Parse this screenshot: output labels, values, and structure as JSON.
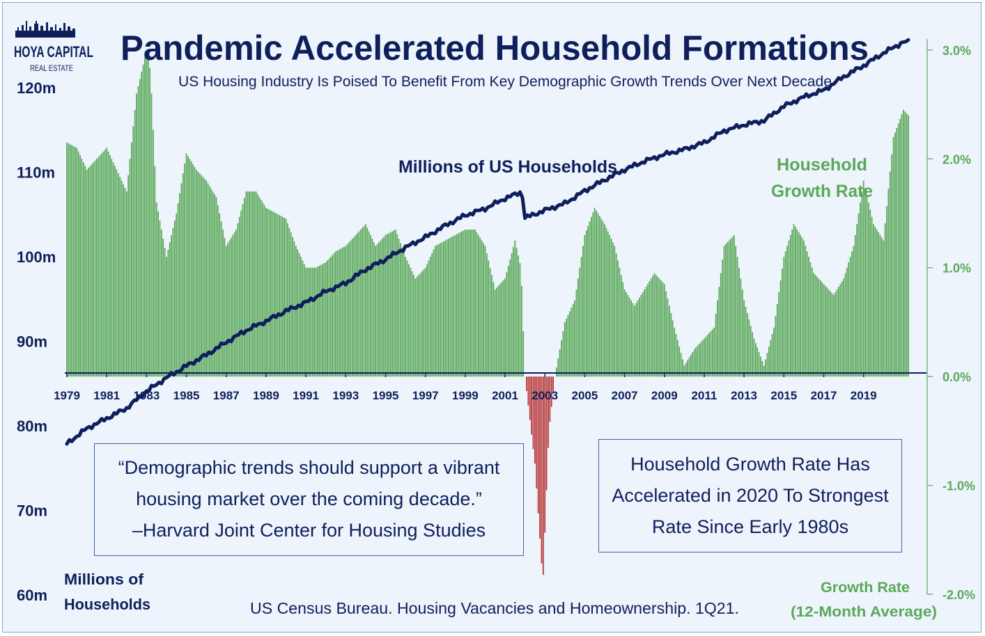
{
  "brand": {
    "name": "HOYA CAPITAL",
    "sub": "REAL ESTATE"
  },
  "title": "Pandemic Accelerated Household Formations",
  "subtitle": "US Housing Industry Is Poised To Benefit From Key Demographic Growth Trends Over Next Decade",
  "quote": {
    "line1": "“Demographic trends should support a vibrant",
    "line2": "housing market over the coming decade.”",
    "line3": "–Harvard Joint Center for Housing Studies"
  },
  "callout": {
    "line1": "Household Growth Rate Has",
    "line2": "Accelerated in 2020 To Strongest",
    "line3": "Rate Since Early 1980s"
  },
  "source": "US Census Bureau. Housing Vacancies and Homeownership. 1Q21.",
  "colors": {
    "navy": "#0f1f5c",
    "green": "#5aa85a",
    "red": "#b83838",
    "background": "#eef4fb",
    "box_border": "#3567a8"
  },
  "chart_data": {
    "type": "bar+line",
    "x_range": [
      1979,
      2021.25
    ],
    "x_ticks": [
      "1979",
      "1981",
      "1983",
      "1985",
      "1987",
      "1989",
      "1991",
      "1993",
      "1995",
      "1997",
      "1999",
      "2001",
      "2003",
      "2005",
      "2007",
      "2009",
      "2011",
      "2013",
      "2015",
      "2017",
      "2019"
    ],
    "left_axis": {
      "label_line1": "Millions of",
      "label_line2": "Households",
      "range": [
        60,
        125
      ],
      "ticks": [
        "60m",
        "70m",
        "80m",
        "90m",
        "100m",
        "110m",
        "120m"
      ]
    },
    "right_axis": {
      "label_line1": "Growth Rate",
      "label_line2": "(12-Month Average)",
      "range": [
        -2.0,
        3.05
      ],
      "ticks": [
        "-2.0%",
        "-1.0%",
        "0.0%",
        "1.0%",
        "2.0%",
        "3.0%"
      ]
    },
    "series": [
      {
        "name": "Millions of US Households",
        "label_line1": "Millions of US Households",
        "type": "line",
        "axis": "left",
        "points": [
          [
            1979.0,
            77.8
          ],
          [
            1980.0,
            79.6
          ],
          [
            1981.0,
            80.8
          ],
          [
            1982.0,
            82.0
          ],
          [
            1983.0,
            84.0
          ],
          [
            1984.0,
            85.6
          ],
          [
            1985.0,
            87.0
          ],
          [
            1986.0,
            88.3
          ],
          [
            1987.0,
            89.8
          ],
          [
            1988.0,
            91.2
          ],
          [
            1989.0,
            92.3
          ],
          [
            1990.0,
            93.5
          ],
          [
            1991.0,
            94.5
          ],
          [
            1992.0,
            95.8
          ],
          [
            1993.0,
            96.8
          ],
          [
            1994.0,
            98.4
          ],
          [
            1995.0,
            99.6
          ],
          [
            1996.0,
            101.0
          ],
          [
            1997.0,
            102.2
          ],
          [
            1998.0,
            103.6
          ],
          [
            1999.0,
            104.8
          ],
          [
            2000.0,
            105.6
          ],
          [
            2001.0,
            106.8
          ],
          [
            2001.85,
            107.6
          ],
          [
            2002.0,
            104.5
          ],
          [
            2003.0,
            105.4
          ],
          [
            2004.0,
            106.2
          ],
          [
            2005.0,
            107.7
          ],
          [
            2006.0,
            109.0
          ],
          [
            2007.0,
            110.2
          ],
          [
            2008.0,
            111.2
          ],
          [
            2009.0,
            112.0
          ],
          [
            2010.0,
            112.6
          ],
          [
            2011.0,
            113.4
          ],
          [
            2012.0,
            114.8
          ],
          [
            2013.0,
            115.5
          ],
          [
            2014.0,
            116.0
          ],
          [
            2015.0,
            117.7
          ],
          [
            2016.0,
            118.8
          ],
          [
            2017.0,
            119.6
          ],
          [
            2018.0,
            121.2
          ],
          [
            2019.0,
            122.5
          ],
          [
            2020.0,
            124.0
          ],
          [
            2021.0,
            125.3
          ]
        ]
      },
      {
        "name": "Household Growth Rate",
        "label_line1": "Household",
        "label_line2": "Growth Rate",
        "type": "bar",
        "axis": "right",
        "points": [
          [
            1979.0,
            2.15
          ],
          [
            1979.5,
            2.1
          ],
          [
            1980.0,
            1.9
          ],
          [
            1980.5,
            2.0
          ],
          [
            1981.0,
            2.1
          ],
          [
            1981.5,
            1.9
          ],
          [
            1982.0,
            1.7
          ],
          [
            1982.5,
            2.6
          ],
          [
            1983.0,
            3.0
          ],
          [
            1983.2,
            2.8
          ],
          [
            1983.5,
            1.6
          ],
          [
            1984.0,
            1.1
          ],
          [
            1984.5,
            1.5
          ],
          [
            1985.0,
            2.05
          ],
          [
            1985.5,
            1.9
          ],
          [
            1986.0,
            1.8
          ],
          [
            1986.5,
            1.65
          ],
          [
            1987.0,
            1.2
          ],
          [
            1987.5,
            1.35
          ],
          [
            1988.0,
            1.7
          ],
          [
            1988.5,
            1.7
          ],
          [
            1989.0,
            1.55
          ],
          [
            1989.5,
            1.5
          ],
          [
            1990.0,
            1.45
          ],
          [
            1990.5,
            1.2
          ],
          [
            1991.0,
            1.0
          ],
          [
            1991.5,
            1.0
          ],
          [
            1992.0,
            1.05
          ],
          [
            1992.5,
            1.15
          ],
          [
            1993.0,
            1.2
          ],
          [
            1993.5,
            1.3
          ],
          [
            1994.0,
            1.4
          ],
          [
            1994.5,
            1.2
          ],
          [
            1995.0,
            1.3
          ],
          [
            1995.5,
            1.35
          ],
          [
            1996.0,
            1.1
          ],
          [
            1996.5,
            0.9
          ],
          [
            1997.0,
            1.0
          ],
          [
            1997.5,
            1.2
          ],
          [
            1998.0,
            1.25
          ],
          [
            1999.0,
            1.35
          ],
          [
            1999.5,
            1.35
          ],
          [
            2000.0,
            1.2
          ],
          [
            2000.5,
            0.8
          ],
          [
            2001.0,
            0.9
          ],
          [
            2001.5,
            1.25
          ],
          [
            2001.8,
            1.0
          ],
          [
            2002.0,
            0.0
          ],
          [
            2002.5,
            -0.8
          ],
          [
            2002.9,
            -1.9
          ],
          [
            2003.2,
            -0.5
          ],
          [
            2003.5,
            0.0
          ],
          [
            2004.0,
            0.5
          ],
          [
            2004.5,
            0.7
          ],
          [
            2005.0,
            1.3
          ],
          [
            2005.5,
            1.55
          ],
          [
            2006.0,
            1.4
          ],
          [
            2006.5,
            1.2
          ],
          [
            2007.0,
            0.8
          ],
          [
            2007.5,
            0.65
          ],
          [
            2008.0,
            0.8
          ],
          [
            2008.5,
            0.95
          ],
          [
            2009.0,
            0.85
          ],
          [
            2009.5,
            0.45
          ],
          [
            2010.0,
            0.1
          ],
          [
            2010.5,
            0.25
          ],
          [
            2011.0,
            0.35
          ],
          [
            2011.5,
            0.45
          ],
          [
            2012.0,
            1.2
          ],
          [
            2012.5,
            1.3
          ],
          [
            2013.0,
            0.7
          ],
          [
            2013.5,
            0.35
          ],
          [
            2014.0,
            0.1
          ],
          [
            2014.5,
            0.45
          ],
          [
            2015.0,
            1.1
          ],
          [
            2015.5,
            1.4
          ],
          [
            2016.0,
            1.25
          ],
          [
            2016.5,
            0.95
          ],
          [
            2017.0,
            0.85
          ],
          [
            2017.5,
            0.75
          ],
          [
            2018.0,
            0.9
          ],
          [
            2018.5,
            1.2
          ],
          [
            2019.0,
            1.8
          ],
          [
            2019.5,
            1.4
          ],
          [
            2020.0,
            1.25
          ],
          [
            2020.5,
            2.2
          ],
          [
            2021.0,
            2.45
          ],
          [
            2021.25,
            2.4
          ]
        ]
      }
    ]
  }
}
